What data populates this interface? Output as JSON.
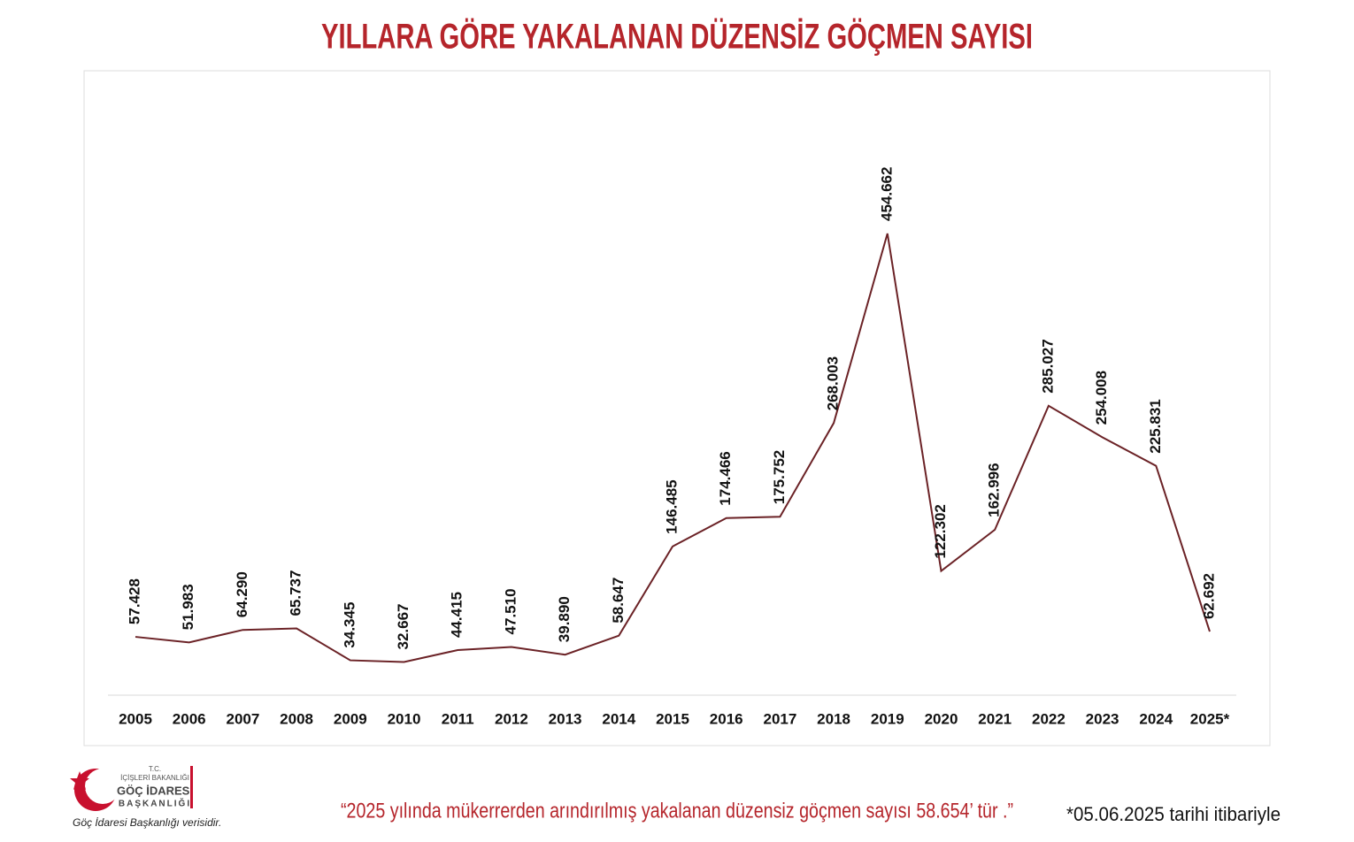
{
  "chart_data": {
    "type": "line",
    "title": "YILLARA GÖRE YAKALANAN DÜZENSİZ GÖÇMEN SAYISI",
    "categories": [
      "2005",
      "2006",
      "2007",
      "2008",
      "2009",
      "2010",
      "2011",
      "2012",
      "2013",
      "2014",
      "2015",
      "2016",
      "2017",
      "2018",
      "2019",
      "2020",
      "2021",
      "2022",
      "2023",
      "2024",
      "2025*"
    ],
    "values": [
      57428,
      51983,
      64290,
      65737,
      34345,
      32667,
      44415,
      47510,
      39890,
      58647,
      146485,
      174466,
      175752,
      268003,
      454662,
      122302,
      162996,
      285027,
      254008,
      225831,
      62692
    ],
    "value_labels": [
      "57.428",
      "51.983",
      "64.290",
      "65.737",
      "34.345",
      "32.667",
      "44.415",
      "47.510",
      "39.890",
      "58.647",
      "146.485",
      "174.466",
      "175.752",
      "268.003",
      "454.662",
      "122.302",
      "162.996",
      "285.027",
      "254.008",
      "225.831",
      "62.692"
    ],
    "color": "#6b2226",
    "annotations": [
      "“2025 yılında mükerrerden arındırılmış yakalanan düzensiz göçmen sayısı 58.654’ tür .”",
      "*05.06.2025 tarihi itibariyle"
    ]
  },
  "logo": {
    "lines": [
      "T.C.",
      "İÇİŞLERİ BAKANLIĞI",
      "GÖÇ İDARESİ",
      "BAŞKANLIĞI"
    ],
    "source": "Göç İdaresi Başkanlığı verisidir."
  }
}
